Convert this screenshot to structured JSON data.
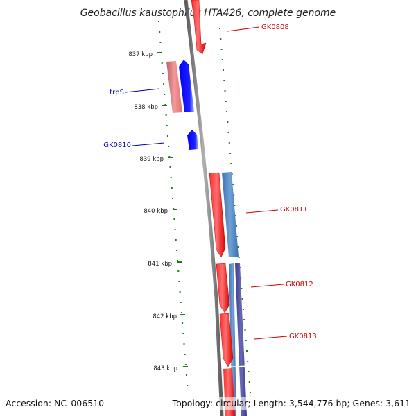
{
  "title": "Geobacillus kaustophilus HTA426, complete genome",
  "footer": {
    "accession": "Accession: NC_006510",
    "summary": "Topology: circular; Length: 3,544,776 bp; Genes: 3,611"
  },
  "colors": {
    "backbone": "#7a7a7a",
    "tick": "#1d7a1d",
    "forward_gene": "#ff0000",
    "reverse_gene": "#0000ff",
    "pale_forward": "#ec8080",
    "steel": "#4f86c0",
    "navy": "#4a4a9a",
    "label_red": "#cc0000",
    "label_blue": "#0000aa"
  },
  "ruler": {
    "unit": "kbp",
    "labels": [
      "837 kbp",
      "838 kbp",
      "839 kbp",
      "840 kbp",
      "841 kbp",
      "842 kbp",
      "843 kbp"
    ],
    "positions_kbp": [
      837,
      838,
      839,
      840,
      841,
      842,
      843
    ]
  },
  "genes": [
    {
      "label": "GK0808",
      "strand": "forward",
      "color": "label_red"
    },
    {
      "label": "trpS",
      "strand": "reverse",
      "color": "label_blue"
    },
    {
      "label": "GK0810",
      "strand": "reverse",
      "color": "label_blue"
    },
    {
      "label": "GK0811",
      "strand": "forward",
      "color": "label_red"
    },
    {
      "label": "GK0812",
      "strand": "forward",
      "color": "label_red"
    },
    {
      "label": "GK0813",
      "strand": "forward",
      "color": "label_red"
    }
  ]
}
